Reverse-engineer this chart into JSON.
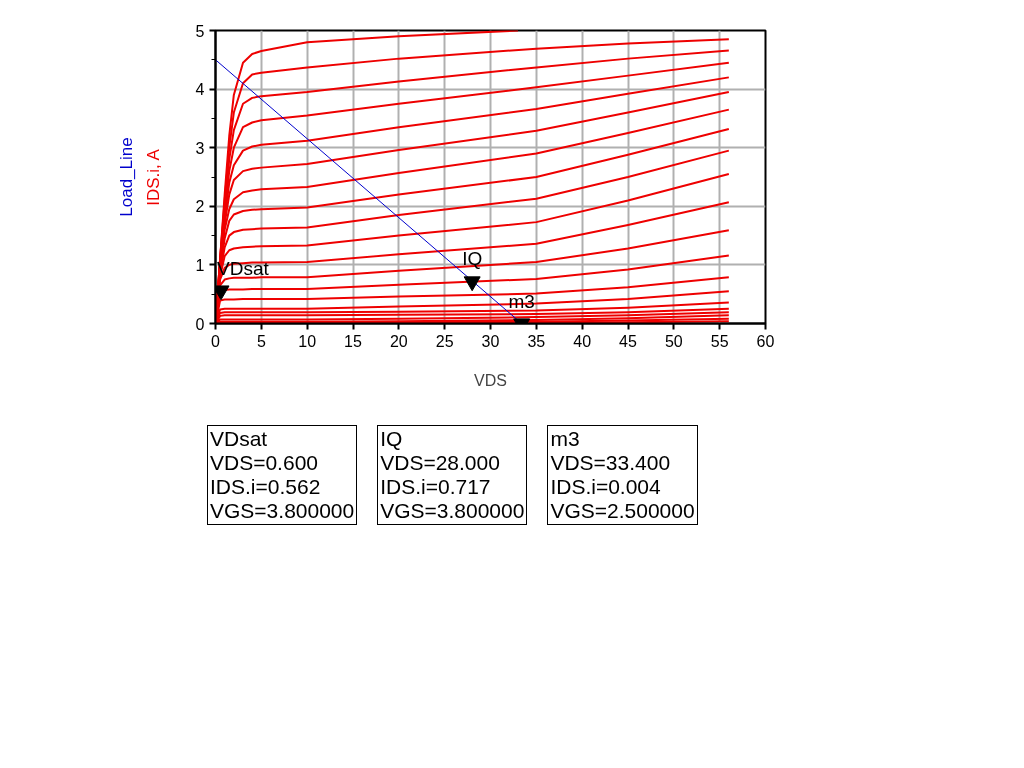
{
  "chart_data": {
    "type": "line",
    "xlabel": "VDS",
    "ylabel": "IDS.i, A",
    "xlim": [
      0,
      60
    ],
    "ylim": [
      0,
      5
    ],
    "xticks": [
      0,
      5,
      10,
      15,
      20,
      25,
      30,
      35,
      40,
      45,
      50,
      55,
      60
    ],
    "yticks": [
      0,
      {
        "value": 0.5,
        "label": null
      },
      1,
      {
        "value": 1.5,
        "label": null
      },
      2,
      {
        "value": 2.5,
        "label": null
      },
      3,
      {
        "value": 3.5,
        "label": null
      },
      4,
      {
        "value": 4.5,
        "label": null
      },
      5
    ],
    "grid": true,
    "line_style": "solid",
    "x": [
      0,
      0.5,
      1,
      1.5,
      2,
      3,
      4,
      5,
      10,
      20,
      35,
      45,
      56
    ],
    "series": [
      {
        "color": "#ee0000",
        "x": [
          0,
          0.5,
          1,
          1.5,
          2,
          3,
          4,
          5,
          10,
          20,
          33
        ],
        "values": [
          0,
          1.1,
          2.2,
          3.2,
          3.9,
          4.45,
          4.6,
          4.65,
          4.8,
          4.9,
          5.0
        ]
      },
      {
        "color": "#ee0000",
        "values": [
          0,
          1.1,
          2.1,
          3.0,
          3.6,
          4.1,
          4.25,
          4.28,
          4.37,
          4.52,
          4.69,
          4.78,
          4.85
        ]
      },
      {
        "color": "#ee0000",
        "values": [
          0,
          1.1,
          2.0,
          2.8,
          3.3,
          3.75,
          3.85,
          3.88,
          3.95,
          4.13,
          4.37,
          4.52,
          4.66
        ]
      },
      {
        "color": "#ee0000",
        "values": [
          0,
          1.05,
          1.9,
          2.6,
          3.0,
          3.35,
          3.43,
          3.47,
          3.55,
          3.75,
          4.03,
          4.23,
          4.45
        ]
      },
      {
        "color": "#ee0000",
        "values": [
          0,
          1.0,
          1.8,
          2.4,
          2.7,
          2.95,
          3.02,
          3.05,
          3.12,
          3.35,
          3.66,
          3.92,
          4.2
        ]
      },
      {
        "color": "#ee0000",
        "values": [
          0,
          1.0,
          1.7,
          2.2,
          2.45,
          2.6,
          2.64,
          2.66,
          2.72,
          2.96,
          3.29,
          3.6,
          3.95
        ]
      },
      {
        "color": "#ee0000",
        "values": [
          0,
          0.95,
          1.6,
          1.95,
          2.12,
          2.24,
          2.27,
          2.29,
          2.33,
          2.57,
          2.9,
          3.25,
          3.65
        ]
      },
      {
        "color": "#ee0000",
        "values": [
          0,
          0.9,
          1.45,
          1.75,
          1.86,
          1.92,
          1.94,
          1.95,
          1.98,
          2.2,
          2.5,
          2.88,
          3.32
        ]
      },
      {
        "color": "#ee0000",
        "values": [
          0,
          0.85,
          1.3,
          1.5,
          1.56,
          1.6,
          1.61,
          1.62,
          1.64,
          1.85,
          2.13,
          2.5,
          2.95
        ]
      },
      {
        "color": "#ee0000",
        "values": [
          0,
          0.8,
          1.15,
          1.25,
          1.28,
          1.3,
          1.31,
          1.32,
          1.33,
          1.5,
          1.73,
          2.1,
          2.55
        ]
      },
      {
        "color": "#ee0000",
        "values": [
          0,
          0.75,
          0.95,
          1.0,
          1.02,
          1.03,
          1.04,
          1.04,
          1.05,
          1.18,
          1.36,
          1.68,
          2.07
        ]
      },
      {
        "color": "#ee0000",
        "values": [
          0,
          0.65,
          0.75,
          0.77,
          0.78,
          0.78,
          0.78,
          0.79,
          0.79,
          0.9,
          1.05,
          1.28,
          1.59
        ]
      },
      {
        "color": "#ee0000",
        "values": [
          0,
          0.52,
          0.57,
          0.58,
          0.58,
          0.58,
          0.59,
          0.59,
          0.59,
          0.66,
          0.76,
          0.92,
          1.16
        ]
      },
      {
        "color": "#ee0000",
        "values": [
          0,
          0.39,
          0.41,
          0.41,
          0.41,
          0.42,
          0.42,
          0.42,
          0.42,
          0.46,
          0.51,
          0.62,
          0.79
        ]
      },
      {
        "color": "#ee0000",
        "values": [
          0,
          0.24,
          0.25,
          0.25,
          0.25,
          0.25,
          0.25,
          0.25,
          0.25,
          0.29,
          0.34,
          0.42,
          0.55
        ]
      },
      {
        "color": "#ee0000",
        "values": [
          0,
          0.18,
          0.19,
          0.19,
          0.19,
          0.19,
          0.19,
          0.19,
          0.19,
          0.2,
          0.22,
          0.27,
          0.36
        ]
      },
      {
        "color": "#ee0000",
        "values": [
          0,
          0.13,
          0.14,
          0.14,
          0.14,
          0.14,
          0.14,
          0.14,
          0.14,
          0.15,
          0.16,
          0.19,
          0.25
        ]
      },
      {
        "color": "#ee0000",
        "values": [
          0,
          0.07,
          0.07,
          0.07,
          0.07,
          0.07,
          0.07,
          0.07,
          0.07,
          0.08,
          0.11,
          0.14,
          0.19
        ]
      },
      {
        "color": "#ee0000",
        "values": [
          0,
          0.03,
          0.03,
          0.03,
          0.03,
          0.03,
          0.03,
          0.03,
          0.03,
          0.04,
          0.06,
          0.09,
          0.14
        ]
      },
      {
        "color": "#ee0000",
        "values": [
          0,
          0.01,
          0.01,
          0.01,
          0.01,
          0.01,
          0.01,
          0.01,
          0.01,
          0.02,
          0.03,
          0.05,
          0.08
        ]
      },
      {
        "color": "#ee0000",
        "values": [
          0,
          0,
          0,
          0,
          0,
          0,
          0,
          0,
          0,
          0.01,
          0.01,
          0.02,
          0.04
        ]
      },
      {
        "name": "Load_Line",
        "color": "#0000cc",
        "x": [
          0,
          33.4
        ],
        "values": [
          4.5,
          0
        ]
      },
      {
        "type": "scatter",
        "marker": "triangle",
        "color": "#000000",
        "x": [
          0.6,
          28,
          33.4
        ],
        "values": [
          0.562,
          0.717,
          0
        ]
      }
    ],
    "annotations": [
      {
        "text": "VDsat",
        "x": 0.6,
        "y": 0.562
      },
      {
        "text": "IQ",
        "x": 28,
        "y": 0.717
      },
      {
        "text": "m3",
        "x": 33.4,
        "y": 0
      },
      "VDsat\nVDS=0.600\nIDS.i=0.562\nVGS=3.800000",
      "IQ\nVDS=28.000\nIDS.i=0.717\nVGS=3.800000",
      "m3\nVDS=33.400\nIDS.i=0.004\nVGS=2.500000"
    ]
  }
}
